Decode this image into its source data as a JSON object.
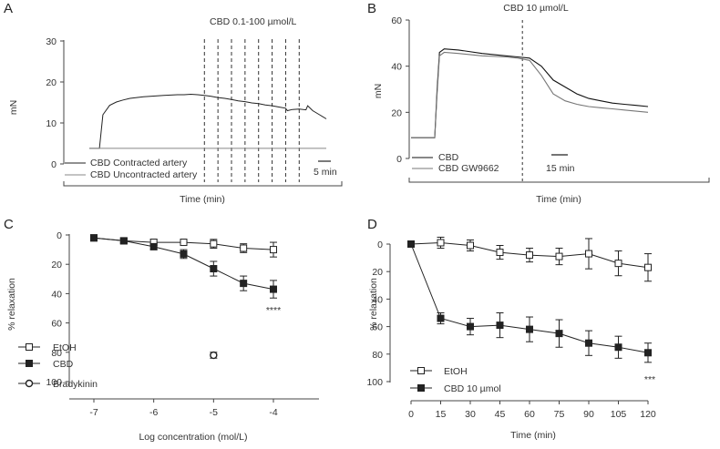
{
  "chart_data": [
    {
      "panel": "A",
      "type": "line",
      "title": "CBD 0.1-100 µmol/L",
      "xlabel": "Time (min)",
      "ylabel": "mN",
      "ylim": [
        0,
        30
      ],
      "yticks": [
        "0",
        "10",
        "20",
        "30"
      ],
      "scale_bar": "5 min",
      "grid": false,
      "legend_placement": "bottom-left",
      "series": [
        {
          "name": "CBD Contracted artery",
          "color": "#222222",
          "x": [
            0,
            1,
            2,
            3,
            4,
            6,
            8,
            10,
            12,
            14,
            16,
            18,
            20,
            22,
            24,
            26,
            28,
            30,
            32,
            34,
            36,
            38,
            40,
            42,
            44,
            46,
            48,
            50,
            52,
            54,
            56,
            58,
            58.5,
            60,
            62,
            64,
            64.5,
            66,
            68,
            70
          ],
          "y": [
            3.8,
            3.8,
            3.8,
            3.8,
            12.0,
            14.3,
            15.1,
            15.6,
            16.0,
            16.2,
            16.4,
            16.5,
            16.6,
            16.7,
            16.8,
            16.9,
            16.9,
            17.0,
            16.9,
            16.7,
            16.5,
            16.2,
            16.0,
            15.7,
            15.4,
            15.2,
            14.9,
            14.7,
            14.4,
            14.2,
            13.9,
            13.6,
            13.0,
            13.3,
            13.4,
            13.2,
            14.2,
            13.0,
            12.0,
            11.0
          ]
        },
        {
          "name": "CBD Uncontracted artery",
          "color": "#888888",
          "x": [
            0,
            10,
            20,
            30,
            40,
            50,
            60,
            70
          ],
          "y": [
            3.8,
            3.8,
            3.8,
            3.8,
            3.8,
            3.8,
            3.8,
            3.8
          ]
        }
      ],
      "markers_x": [
        34,
        38,
        42,
        46,
        50,
        54,
        58,
        62
      ]
    },
    {
      "panel": "B",
      "type": "line",
      "title": "CBD 10 µmol/L",
      "xlabel": "Time (min)",
      "ylabel": "mN",
      "ylim": [
        0,
        60
      ],
      "yticks": [
        "0",
        "20",
        "40",
        "60"
      ],
      "scale_bar": "15 min",
      "grid": false,
      "legend_placement": "bottom-left",
      "series": [
        {
          "name": "CBD",
          "color": "#111111",
          "x": [
            0,
            10,
            11,
            12,
            14,
            20,
            30,
            40,
            45,
            50,
            55,
            60,
            65,
            70,
            75,
            80,
            85,
            90,
            95,
            100
          ],
          "y": [
            9,
            9,
            30,
            46,
            47.5,
            47,
            45.5,
            44.5,
            44,
            43.5,
            40,
            34,
            31,
            28,
            26,
            25,
            24,
            23.5,
            23,
            22.5
          ]
        },
        {
          "name": "CBD GW9662",
          "color": "#777777",
          "x": [
            0,
            10,
            11,
            12,
            14,
            20,
            30,
            40,
            45,
            50,
            55,
            60,
            65,
            70,
            75,
            80,
            85,
            90,
            95,
            100
          ],
          "y": [
            9,
            9,
            28,
            44.5,
            46,
            45.5,
            44.5,
            44,
            43.5,
            42.5,
            36,
            28,
            25,
            23.5,
            22.5,
            22,
            21.5,
            21,
            20.5,
            20
          ]
        }
      ],
      "marker_x": 47
    },
    {
      "panel": "C",
      "type": "line",
      "xlabel": "Log concentration (mol/L)",
      "ylabel": "% relaxation",
      "xlim": [
        -7.5,
        -3.5
      ],
      "ylim": [
        0,
        100
      ],
      "y_inverted": true,
      "xticks": [
        "-7",
        "-6",
        "-5",
        "-4"
      ],
      "yticks": [
        "0",
        "20",
        "40",
        "60",
        "80",
        "100"
      ],
      "annotation": "****",
      "grid": false,
      "legend_placement": "bottom-left",
      "series": [
        {
          "name": "EtOH",
          "marker": "open-square",
          "x": [
            -7,
            -6.5,
            -6,
            -5.5,
            -5,
            -4.5,
            -4
          ],
          "y": [
            2,
            4,
            5,
            5,
            6,
            9,
            10
          ],
          "err": [
            2,
            1.5,
            2,
            2,
            3,
            3,
            5
          ]
        },
        {
          "name": "CBD",
          "marker": "filled-square",
          "x": [
            -7,
            -6.5,
            -6,
            -5.5,
            -5,
            -4.5,
            -4
          ],
          "y": [
            2,
            4,
            8,
            13,
            23,
            33,
            37
          ],
          "err": [
            2,
            1.5,
            2,
            3,
            5,
            5,
            6
          ]
        },
        {
          "name": "Bradykinin",
          "marker": "open-circle",
          "x": [
            -5
          ],
          "y": [
            82
          ],
          "err": [
            2
          ]
        }
      ]
    },
    {
      "panel": "D",
      "type": "line",
      "xlabel": "Time (min)",
      "ylabel": "% relaxation",
      "xlim": [
        0,
        120
      ],
      "ylim": [
        0,
        100
      ],
      "y_inverted": true,
      "xticks": [
        "0",
        "15",
        "30",
        "45",
        "60",
        "75",
        "90",
        "105",
        "120"
      ],
      "yticks": [
        "0",
        "20",
        "40",
        "60",
        "80",
        "100"
      ],
      "annotation": "***",
      "grid": false,
      "legend_placement": "bottom-left",
      "series": [
        {
          "name": "EtOH",
          "marker": "open-square",
          "x": [
            0,
            15,
            30,
            45,
            60,
            75,
            90,
            105,
            120
          ],
          "y": [
            0,
            -1,
            1,
            6,
            8,
            9,
            7,
            14,
            17
          ],
          "err": [
            1,
            4,
            4,
            5,
            5,
            6,
            11,
            9,
            10
          ]
        },
        {
          "name": "CBD 10 µmol",
          "marker": "filled-square",
          "x": [
            0,
            15,
            30,
            45,
            60,
            75,
            90,
            105,
            120
          ],
          "y": [
            0,
            54,
            60,
            59,
            62,
            65,
            72,
            75,
            79
          ],
          "err": [
            1,
            4,
            6,
            9,
            9,
            10,
            9,
            8,
            7
          ]
        }
      ]
    }
  ]
}
